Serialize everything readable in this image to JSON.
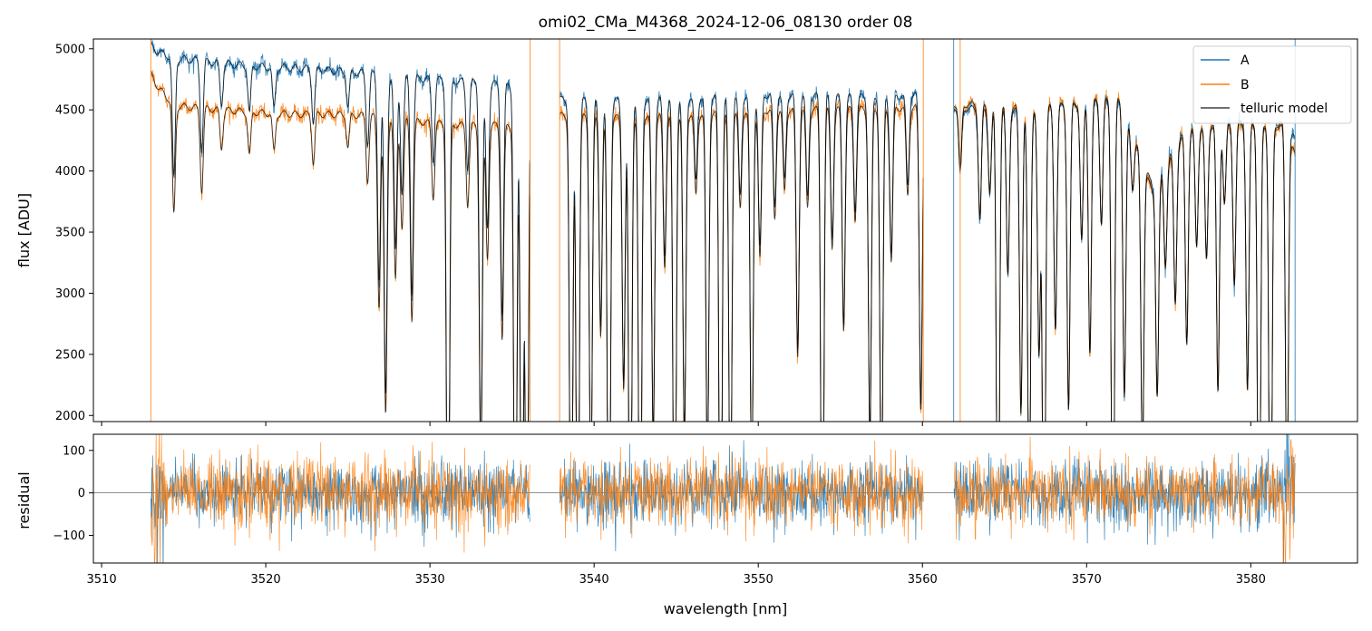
{
  "chart_data": [
    {
      "type": "line",
      "panel": "main",
      "title": "omi02_CMa_M4368_2024-12-06_08130  order 08",
      "xlabel": "",
      "ylabel": "flux [ADU]",
      "xlim": [
        3509.5,
        3586.5
      ],
      "ylim": [
        1950,
        5080
      ],
      "yticks": [
        2000,
        2500,
        3000,
        3500,
        4000,
        4500,
        5000
      ],
      "xticks": [
        3510,
        3520,
        3530,
        3540,
        3550,
        3560,
        3570,
        3580
      ],
      "legend": {
        "placement": "top-right",
        "entries": [
          "A",
          "B",
          "telluric model"
        ]
      },
      "colors": {
        "A": "#1f77b4",
        "B": "#ff7f0e",
        "telluric model": "#000000"
      },
      "gaps": [
        [
          3536.1,
          3537.9
        ],
        [
          3560.05,
          3561.9
        ]
      ],
      "series": [
        {
          "name": "A",
          "x": [
            3513.0,
            3513.5,
            3514.5,
            3516.0,
            3518.0,
            3520.0,
            3522.0,
            3524.0,
            3526.0,
            3528.0,
            3530.0,
            3532.0,
            3534.0,
            3536.0,
            3538.0,
            3540.0,
            3542.0,
            3544.0,
            3546.0,
            3548.0,
            3550.0,
            3552.0,
            3554.0,
            3556.0,
            3558.0,
            3560.0,
            3562.0,
            3564.0,
            3566.0,
            3568.0,
            3570.0,
            3572.0,
            3574.0,
            3576.0,
            3578.0,
            3580.0,
            3582.0,
            3582.7
          ],
          "continuum": [
            5050,
            5000,
            4950,
            4930,
            4900,
            4880,
            4870,
            4850,
            4830,
            4800,
            4780,
            4760,
            4740,
            4720,
            4610,
            4600,
            4600,
            4620,
            4630,
            4640,
            4650,
            4650,
            4640,
            4630,
            4640,
            4650,
            4550,
            4520,
            4520,
            4540,
            4590,
            4600,
            3900,
            4350,
            4420,
            4430,
            4400,
            4280
          ]
        },
        {
          "name": "B",
          "x": [
            3513.0,
            3513.5,
            3514.5,
            3516.0,
            3518.0,
            3520.0,
            3522.0,
            3524.0,
            3526.0,
            3528.0,
            3530.0,
            3532.0,
            3534.0,
            3536.0,
            3538.0,
            3540.0,
            3542.0,
            3544.0,
            3546.0,
            3548.0,
            3550.0,
            3552.0,
            3554.0,
            3556.0,
            3558.0,
            3560.0,
            3562.0,
            3564.0,
            3566.0,
            3568.0,
            3570.0,
            3572.0,
            3574.0,
            3576.0,
            3578.0,
            3580.0,
            3582.0,
            3582.7
          ],
          "continuum": [
            4820,
            4700,
            4560,
            4540,
            4520,
            4500,
            4490,
            4490,
            4480,
            4450,
            4420,
            4400,
            4400,
            4380,
            4480,
            4460,
            4460,
            4480,
            4490,
            4510,
            4520,
            4530,
            4530,
            4530,
            4540,
            4550,
            4580,
            4560,
            4540,
            4550,
            4600,
            4620,
            3850,
            4330,
            4400,
            4420,
            4380,
            4150
          ]
        },
        {
          "name": "telluric model",
          "absorption_lines": [
            [
              3514.4,
              0.8
            ],
            [
              3516.1,
              0.85
            ],
            [
              3517.3,
              0.93
            ],
            [
              3519.0,
              0.92
            ],
            [
              3520.5,
              0.93
            ],
            [
              3522.9,
              0.91
            ],
            [
              3525.0,
              0.94
            ],
            [
              3526.2,
              0.88
            ],
            [
              3526.9,
              0.65
            ],
            [
              3527.3,
              0.45
            ],
            [
              3527.9,
              0.7
            ],
            [
              3528.3,
              0.8
            ],
            [
              3528.9,
              0.63
            ],
            [
              3530.2,
              0.86
            ],
            [
              3531.1,
              0.0
            ],
            [
              3532.3,
              0.85
            ],
            [
              3533.1,
              0.35
            ],
            [
              3533.5,
              0.75
            ],
            [
              3534.4,
              0.6
            ],
            [
              3535.2,
              0.0
            ],
            [
              3535.6,
              0.0
            ],
            [
              3535.9,
              0.0
            ],
            [
              3538.6,
              0.0
            ],
            [
              3539.0,
              0.0
            ],
            [
              3539.8,
              0.3
            ],
            [
              3540.4,
              0.6
            ],
            [
              3540.9,
              0.0
            ],
            [
              3541.8,
              0.5
            ],
            [
              3542.2,
              0.0
            ],
            [
              3542.8,
              0.0
            ],
            [
              3543.6,
              0.4
            ],
            [
              3544.3,
              0.72
            ],
            [
              3544.9,
              0.0
            ],
            [
              3545.5,
              0.4
            ],
            [
              3546.2,
              0.85
            ],
            [
              3546.9,
              0.35
            ],
            [
              3547.7,
              0.0
            ],
            [
              3548.3,
              0.2
            ],
            [
              3548.9,
              0.82
            ],
            [
              3549.6,
              0.3
            ],
            [
              3550.1,
              0.73
            ],
            [
              3551.0,
              0.8
            ],
            [
              3551.6,
              0.85
            ],
            [
              3552.4,
              0.55
            ],
            [
              3553.0,
              0.82
            ],
            [
              3553.9,
              0.0
            ],
            [
              3554.5,
              0.75
            ],
            [
              3555.2,
              0.6
            ],
            [
              3555.9,
              0.8
            ],
            [
              3556.8,
              0.4
            ],
            [
              3557.5,
              0.25
            ],
            [
              3558.1,
              0.72
            ],
            [
              3559.1,
              0.84
            ],
            [
              3559.9,
              0.45
            ],
            [
              3562.3,
              0.88
            ],
            [
              3563.5,
              0.8
            ],
            [
              3564.1,
              0.85
            ],
            [
              3564.6,
              0.02
            ],
            [
              3565.2,
              0.7
            ],
            [
              3566.0,
              0.45
            ],
            [
              3566.5,
              0.25
            ],
            [
              3567.1,
              0.55
            ],
            [
              3567.4,
              0.0
            ],
            [
              3568.1,
              0.6
            ],
            [
              3568.9,
              0.45
            ],
            [
              3569.7,
              0.75
            ],
            [
              3570.2,
              0.55
            ],
            [
              3570.9,
              0.78
            ],
            [
              3571.6,
              0.0
            ],
            [
              3572.3,
              0.48
            ],
            [
              3572.8,
              0.9
            ],
            [
              3573.4,
              0.4
            ],
            [
              3574.3,
              0.55
            ],
            [
              3574.8,
              0.8
            ],
            [
              3575.4,
              0.7
            ],
            [
              3576.1,
              0.6
            ],
            [
              3576.7,
              0.78
            ],
            [
              3577.3,
              0.75
            ],
            [
              3578.0,
              0.5
            ],
            [
              3578.4,
              0.85
            ],
            [
              3579.0,
              0.7
            ],
            [
              3579.8,
              0.5
            ],
            [
              3580.5,
              0.0
            ],
            [
              3581.2,
              0.0
            ],
            [
              3582.2,
              0.3
            ]
          ]
        }
      ]
    },
    {
      "type": "line",
      "panel": "residual",
      "title": "",
      "xlabel": "wavelength [nm]",
      "ylabel": "residual",
      "xlim": [
        3509.5,
        3586.5
      ],
      "ylim": [
        -165,
        138
      ],
      "yticks": [
        -100,
        0,
        100
      ],
      "xticks": [
        3510,
        3520,
        3530,
        3540,
        3550,
        3560,
        3570,
        3580
      ],
      "zero_line": 0,
      "series": [
        {
          "name": "A",
          "x_range": [
            3513.0,
            3582.7
          ],
          "noise_std": 38
        },
        {
          "name": "B",
          "x_range": [
            3513.0,
            3582.7
          ],
          "noise_std": 40
        }
      ]
    }
  ]
}
